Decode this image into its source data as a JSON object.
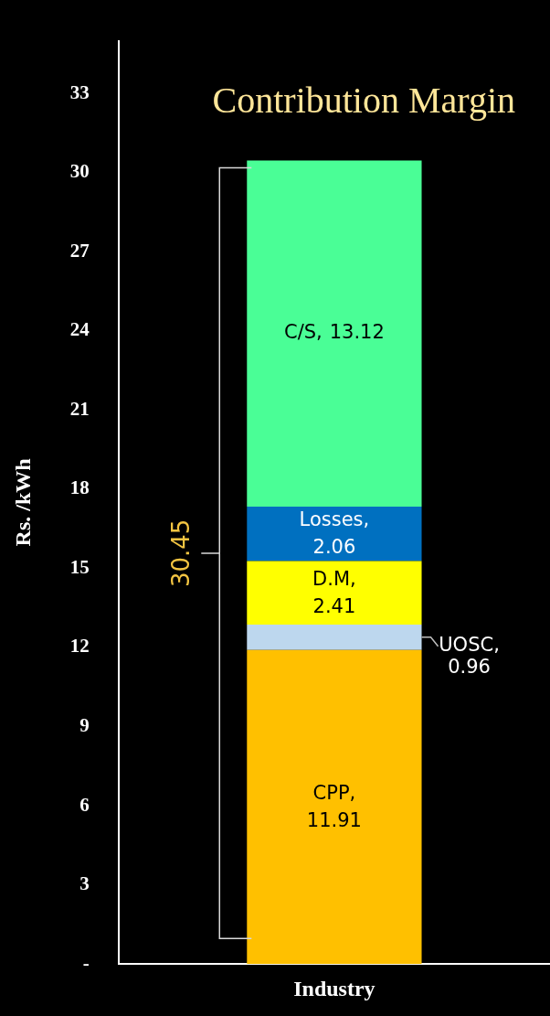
{
  "chart_data": {
    "type": "bar",
    "title": "Contribution Margin",
    "ylabel": "Rs. /kWh",
    "categories": [
      "Industry"
    ],
    "stacked": true,
    "data_labels": true,
    "totals": [
      "30.45"
    ],
    "grid": false,
    "legend": false,
    "ylim": [
      0,
      35
    ],
    "yticks": [
      {
        "value": 0,
        "label": "-"
      },
      3,
      6,
      9,
      12,
      15,
      18,
      21,
      24,
      27,
      30,
      33
    ],
    "series": [
      {
        "name": "CPP,",
        "color": "#ffc000",
        "values": [
          11.91
        ]
      },
      {
        "name": "UOSC,",
        "color": "#bdd7ee",
        "values": [
          0.96
        ]
      },
      {
        "name": "D.M,",
        "color": "#ffff00",
        "values": [
          2.41
        ]
      },
      {
        "name": "Losses,",
        "color": "#0070c0",
        "values": [
          2.06
        ]
      },
      {
        "name": "C/S,",
        "color": "#4afe96",
        "values": [
          13.12
        ]
      }
    ]
  }
}
